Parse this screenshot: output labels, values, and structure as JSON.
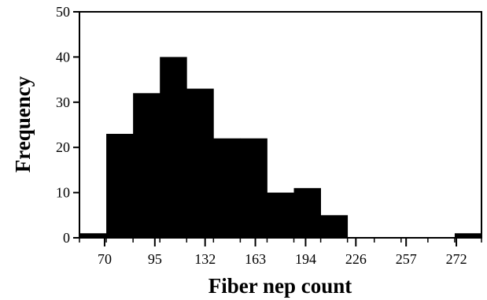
{
  "chart_data": {
    "type": "bar",
    "title": "",
    "xlabel": "Fiber nep count",
    "ylabel": "Frequency",
    "ylim": [
      0,
      50
    ],
    "yticks": [
      0,
      10,
      20,
      30,
      40,
      50
    ],
    "xtick_labels": [
      "70",
      "95",
      "132",
      "163",
      "194",
      "226",
      "257",
      "272"
    ],
    "bar_count": 15,
    "values": [
      1,
      23,
      32,
      40,
      33,
      22,
      22,
      10,
      11,
      5,
      0,
      0,
      0,
      0,
      1
    ],
    "bar_color": "#000000",
    "grid": false,
    "legend": "none"
  }
}
